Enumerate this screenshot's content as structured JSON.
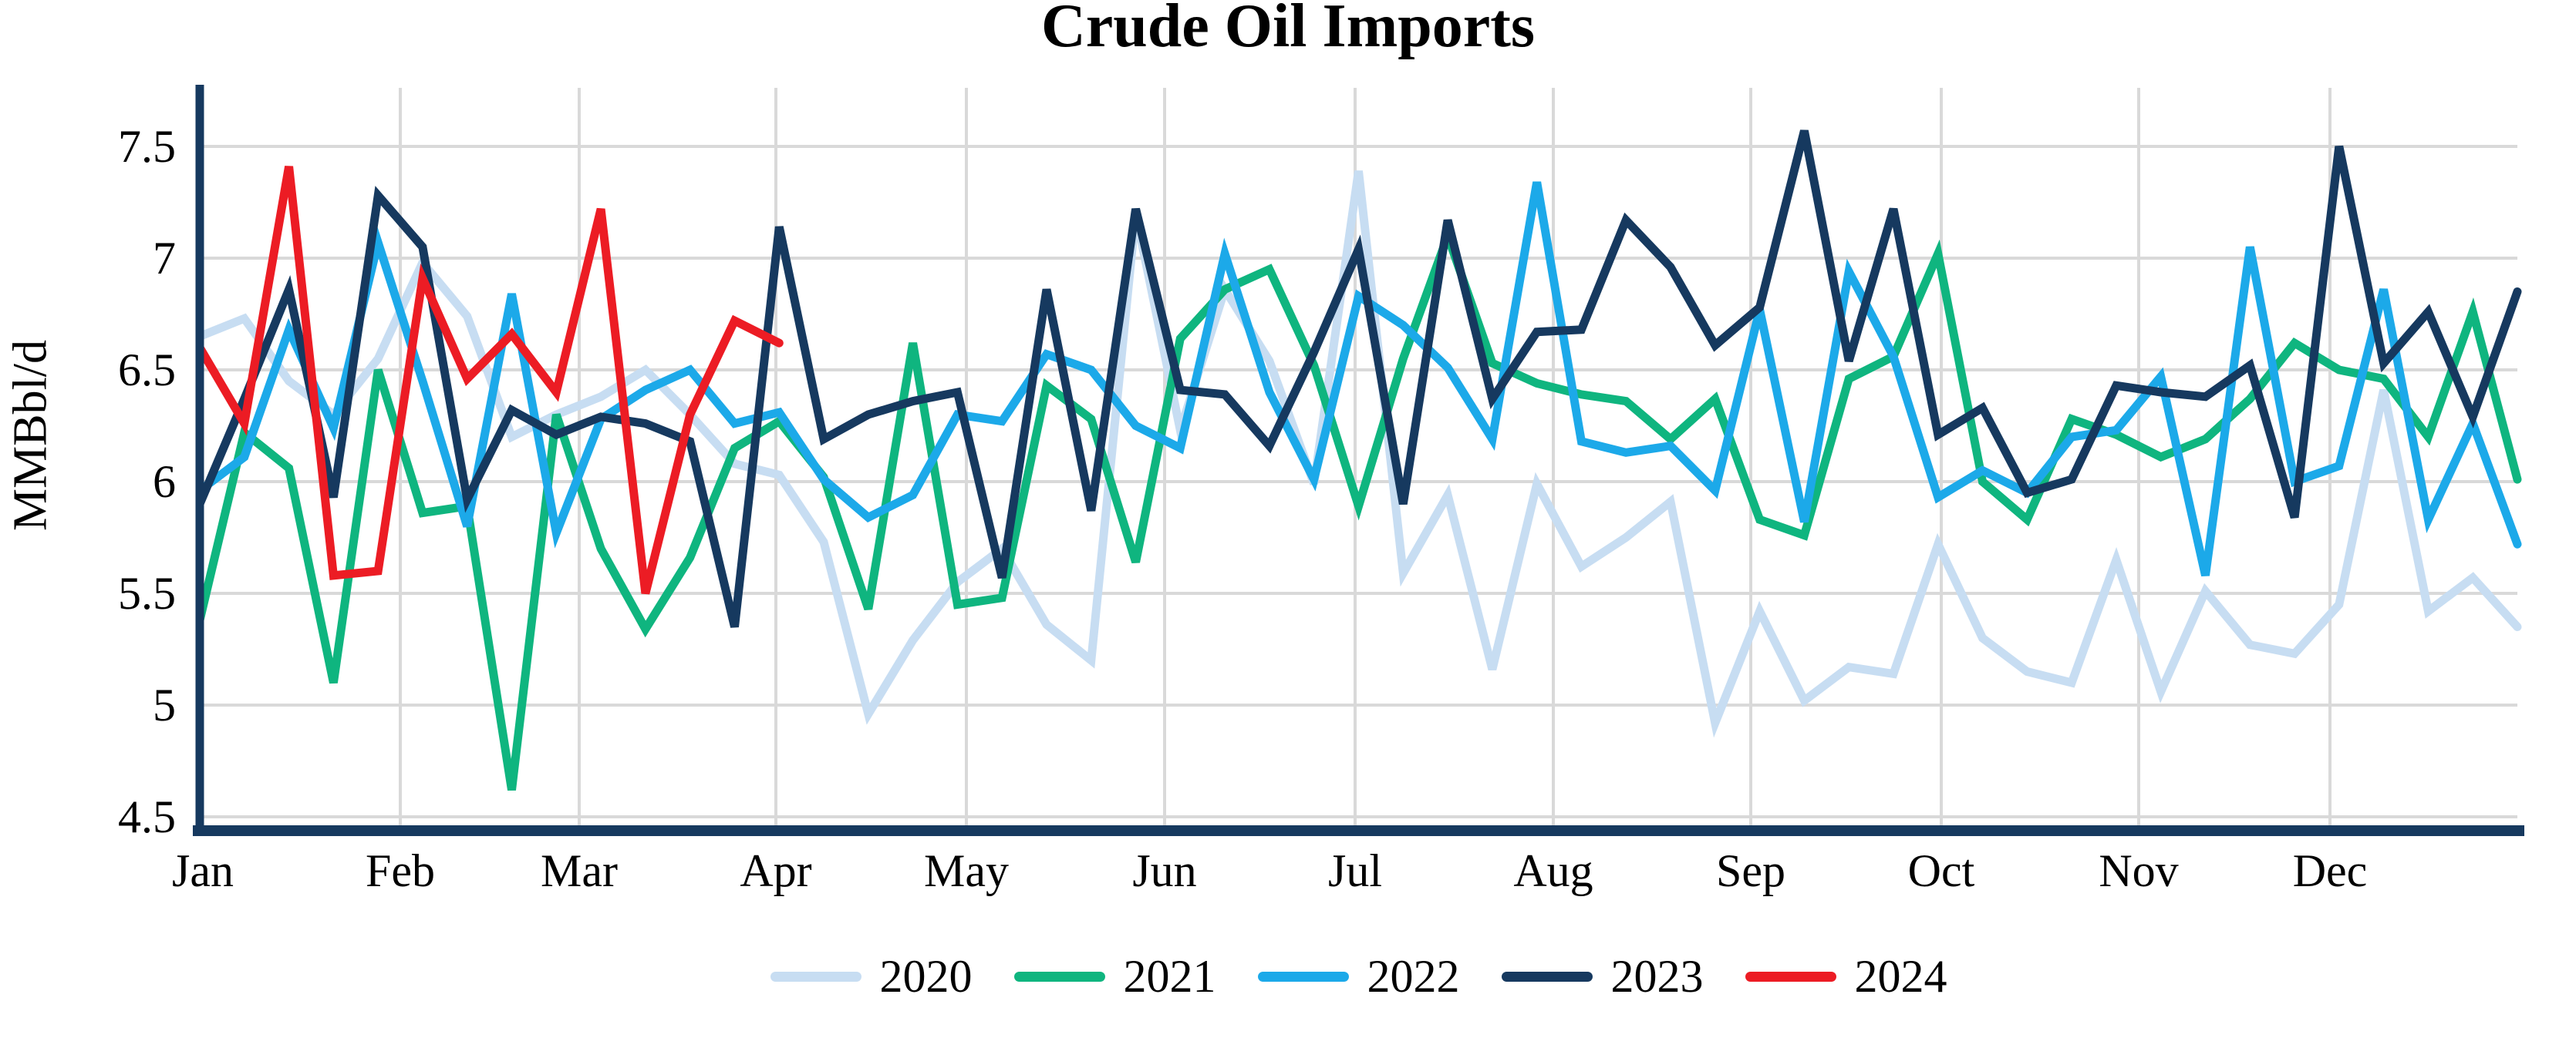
{
  "chart": {
    "title": "Crude Oil Imports",
    "ylabel": "MMBbl/d"
  },
  "style": {
    "background_color": "#FFFFFF",
    "grid_color": "#D9D9D9",
    "axis_color": "#16395F",
    "text_color": "#000000",
    "line_width": 11
  },
  "chart_data": {
    "type": "line",
    "title": "Crude Oil Imports",
    "xlabel": "",
    "ylabel": "MMBbl/d",
    "x_unit": "weekly observations from January through December; full years have 53 weekly points, 2024 ends in early April",
    "x_tick_labels": [
      "Jan",
      "Feb",
      "Mar",
      "Apr",
      "May",
      "Jun",
      "Jul",
      "Aug",
      "Sep",
      "Oct",
      "Nov",
      "Dec"
    ],
    "y_ticks": [
      7.5,
      7,
      6.5,
      6,
      5.5,
      5,
      4.5
    ],
    "y_tick_labels": [
      "7.5",
      "7",
      "6.5",
      "6",
      "5.5",
      "5",
      "4.5"
    ],
    "ylim": [
      4.44,
      7.76
    ],
    "grid": true,
    "legend_position": "bottom",
    "series": [
      {
        "name": "2020",
        "color": "#C7DDF2",
        "values": [
          6.65,
          6.73,
          6.45,
          6.3,
          6.55,
          6.98,
          6.74,
          6.2,
          6.3,
          6.38,
          6.5,
          6.3,
          6.08,
          6.03,
          5.73,
          4.96,
          5.29,
          5.55,
          5.7,
          5.36,
          5.2,
          7.2,
          6.23,
          6.86,
          6.54,
          5.99,
          7.39,
          5.59,
          5.94,
          5.16,
          5.99,
          5.62,
          5.75,
          5.91,
          4.92,
          5.42,
          5.02,
          5.17,
          5.14,
          5.72,
          5.3,
          5.15,
          5.1,
          5.65,
          5.06,
          5.51,
          5.27,
          5.23,
          5.45,
          6.41,
          5.42,
          5.57,
          5.35
        ]
      },
      {
        "name": "2021",
        "color": "#0FB57F",
        "values": [
          5.38,
          6.22,
          6.06,
          5.1,
          6.5,
          5.86,
          5.89,
          4.62,
          6.3,
          5.7,
          5.34,
          5.66,
          6.15,
          6.27,
          6.02,
          5.43,
          6.62,
          5.45,
          5.48,
          6.43,
          6.28,
          5.64,
          6.64,
          6.86,
          6.95,
          6.52,
          5.89,
          6.55,
          7.1,
          6.53,
          6.44,
          6.39,
          6.36,
          6.19,
          6.37,
          5.83,
          5.76,
          6.46,
          6.56,
          7.02,
          6.0,
          5.83,
          6.28,
          6.21,
          6.11,
          6.19,
          6.37,
          6.62,
          6.5,
          6.46,
          6.2,
          6.76,
          6.01
        ]
      },
      {
        "name": "2022",
        "color": "#1CA9E9",
        "values": [
          5.96,
          6.11,
          6.68,
          6.24,
          7.07,
          6.45,
          5.8,
          6.84,
          5.77,
          6.28,
          6.41,
          6.5,
          6.26,
          6.31,
          6.01,
          5.84,
          5.94,
          6.3,
          6.27,
          6.57,
          6.5,
          6.25,
          6.15,
          7.02,
          6.4,
          6.01,
          6.83,
          6.7,
          6.51,
          6.19,
          7.34,
          6.18,
          6.13,
          6.16,
          5.96,
          6.77,
          5.82,
          6.94,
          6.56,
          5.93,
          6.05,
          5.95,
          6.2,
          6.23,
          6.47,
          5.58,
          7.05,
          6.0,
          6.07,
          6.86,
          5.83,
          6.26,
          5.72
        ]
      },
      {
        "name": "2023",
        "color": "#16395F",
        "values": [
          5.9,
          6.37,
          6.86,
          5.93,
          7.28,
          7.05,
          5.92,
          6.32,
          6.21,
          6.29,
          6.26,
          6.18,
          5.35,
          7.14,
          6.19,
          6.3,
          6.36,
          6.4,
          5.57,
          6.86,
          5.87,
          7.22,
          6.41,
          6.39,
          6.16,
          6.58,
          7.04,
          5.9,
          7.17,
          6.37,
          6.67,
          6.68,
          7.17,
          6.96,
          6.61,
          6.78,
          7.57,
          6.54,
          7.22,
          6.21,
          6.33,
          5.95,
          6.01,
          6.43,
          6.4,
          6.38,
          6.52,
          5.84,
          7.5,
          6.53,
          6.76,
          6.29,
          6.85
        ]
      },
      {
        "name": "2024",
        "color": "#EC1C24",
        "values": [
          6.6,
          6.26,
          7.41,
          5.58,
          5.6,
          6.91,
          6.46,
          6.66,
          6.4,
          7.22,
          5.5,
          6.3,
          6.72,
          6.62
        ]
      }
    ]
  }
}
